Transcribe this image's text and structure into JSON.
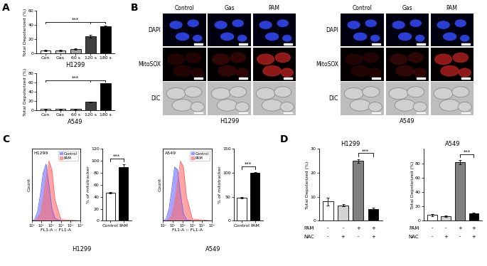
{
  "panel_labels": [
    "A",
    "B",
    "C",
    "D"
  ],
  "chart_data": [
    {
      "type": "bar",
      "panel": "A",
      "caption": "H1299",
      "ylabel": "Total Depolarized (%)",
      "categories": [
        "Con",
        "Gas",
        "60 s",
        "120 s",
        "180 s"
      ],
      "values": [
        4,
        4,
        6,
        24,
        38
      ],
      "errors": [
        0.8,
        0.8,
        1,
        2,
        1.2
      ],
      "colors": [
        "#ffffff",
        "#d0d0d0",
        "#a0a0a0",
        "#404040",
        "#000000"
      ],
      "ylim": [
        0,
        60
      ],
      "yticks": [
        0,
        20,
        40,
        60
      ],
      "significance": [
        {
          "between": [
            "Con",
            "120 s",
            "180 s"
          ],
          "label": "***"
        }
      ]
    },
    {
      "type": "bar",
      "panel": "A",
      "caption": "A549",
      "ylabel": "Total Depolarized (%)",
      "categories": [
        "Con",
        "Gas",
        "60 s",
        "120 s",
        "180 s"
      ],
      "values": [
        3,
        3,
        3,
        18,
        58
      ],
      "errors": [
        0.5,
        0.5,
        0.5,
        0.8,
        0.8
      ],
      "colors": [
        "#ffffff",
        "#d0d0d0",
        "#a0a0a0",
        "#404040",
        "#000000"
      ],
      "ylim": [
        0,
        80
      ],
      "yticks": [
        0,
        20,
        40,
        60,
        80
      ],
      "significance": [
        {
          "between": [
            "Con",
            "120 s",
            "180 s"
          ],
          "label": "***"
        }
      ]
    },
    {
      "type": "line",
      "panel": "C",
      "caption": "H1299",
      "inset_label": "H1299",
      "xlabel": "FL1-A :: FL1-A",
      "ylabel": "Count",
      "log": "x",
      "tick_labels": "x",
      "legend": "upper right",
      "x": [
        1,
        2,
        4,
        8,
        15,
        30,
        60,
        120,
        250,
        1000,
        100000
      ],
      "series": [
        {
          "name": "Control",
          "color": "#6a6aff",
          "values": [
            0,
            2,
            15,
            45,
            80,
            95,
            60,
            20,
            4,
            0,
            0
          ]
        },
        {
          "name": "PAM",
          "color": "#ff6a6a",
          "values": [
            0,
            0,
            3,
            12,
            35,
            70,
            100,
            85,
            35,
            2,
            0
          ]
        }
      ],
      "xlim": [
        1,
        100000
      ],
      "xticks": [
        {
          "value": 1,
          "label": "10⁰"
        },
        {
          "value": 10,
          "label": "10¹"
        },
        {
          "value": 100,
          "label": "10²"
        },
        {
          "value": 1000,
          "label": "10³"
        },
        {
          "value": 10000,
          "label": "10⁴"
        },
        {
          "value": 100000,
          "label": "10⁵"
        }
      ],
      "ylim": [
        0,
        120
      ],
      "yticks": []
    },
    {
      "type": "bar",
      "panel": "C",
      "ylabel": "% of mitotracker",
      "categories": [
        "Control",
        "PAM"
      ],
      "values": [
        47,
        90
      ],
      "errors": [
        1.5,
        4
      ],
      "colors": [
        "#ffffff",
        "#000000"
      ],
      "ylim": [
        0,
        120
      ],
      "yticks": [
        0,
        20,
        40,
        60,
        80,
        100,
        120
      ],
      "significance": [
        {
          "between": [
            "Control",
            "PAM"
          ],
          "label": "***"
        }
      ]
    },
    {
      "type": "line",
      "panel": "C",
      "caption": "A549",
      "inset_label": "A549",
      "xlabel": "FL1-A :: FL1-A",
      "ylabel": "Count",
      "log": "x",
      "tick_labels": "x",
      "legend": "upper right",
      "x": [
        1,
        2,
        4,
        8,
        15,
        30,
        60,
        120,
        250,
        1000,
        100000
      ],
      "series": [
        {
          "name": "Control",
          "color": "#6a6aff",
          "values": [
            0,
            3,
            20,
            55,
            90,
            85,
            45,
            12,
            2,
            0,
            0
          ]
        },
        {
          "name": "PAM",
          "color": "#ff6a6a",
          "values": [
            0,
            0,
            2,
            10,
            30,
            65,
            100,
            90,
            40,
            3,
            0
          ]
        }
      ],
      "xlim": [
        1,
        100000
      ],
      "xticks": [
        {
          "value": 1,
          "label": "10⁰"
        },
        {
          "value": 10,
          "label": "10¹"
        },
        {
          "value": 100,
          "label": "10²"
        },
        {
          "value": 1000,
          "label": "10³"
        },
        {
          "value": 10000,
          "label": "10⁴"
        },
        {
          "value": 100000,
          "label": "10⁵"
        }
      ],
      "ylim": [
        0,
        120
      ],
      "yticks": []
    },
    {
      "type": "bar",
      "panel": "C",
      "ylabel": "% of mitotracker",
      "categories": [
        "Control",
        "PAM"
      ],
      "values": [
        48,
        100
      ],
      "errors": [
        1,
        1.5
      ],
      "colors": [
        "#ffffff",
        "#000000"
      ],
      "ylim": [
        0,
        150
      ],
      "yticks": [
        0,
        50,
        100,
        150
      ],
      "significance": [
        {
          "between": [
            "Control",
            "PAM"
          ],
          "label": "***"
        }
      ]
    },
    {
      "type": "bar",
      "panel": "D",
      "title": "H1299",
      "ylabel": "Total Depolarized (%)",
      "tick_labels": "y",
      "rows": [
        {
          "label": "PAM",
          "values": [
            "-",
            "-",
            "+",
            "+"
          ]
        },
        {
          "label": "NAC",
          "values": [
            "-",
            "+",
            "-",
            "+"
          ]
        }
      ],
      "values": [
        8,
        6.5,
        25,
        5
      ],
      "errors": [
        1.5,
        0.5,
        0.8,
        0.5
      ],
      "colors": [
        "#ffffff",
        "#d3d3d3",
        "#808080",
        "#000000"
      ],
      "ylim": [
        0,
        30
      ],
      "yticks": [
        0,
        10,
        20,
        30
      ],
      "significance": [
        {
          "between": [
            2,
            3
          ],
          "label": "***"
        }
      ]
    },
    {
      "type": "bar",
      "panel": "D",
      "title": "A549",
      "ylabel": "Total Depolarized (%)",
      "tick_labels": "y",
      "rows": [
        {
          "label": "PAM",
          "values": [
            "-",
            "-",
            "+",
            "+"
          ]
        },
        {
          "label": "NAC",
          "values": [
            "-",
            "+",
            "-",
            "+"
          ]
        }
      ],
      "values": [
        8,
        6,
        82,
        10
      ],
      "errors": [
        1.5,
        1,
        3,
        1
      ],
      "colors": [
        "#ffffff",
        "#d3d3d3",
        "#808080",
        "#000000"
      ],
      "ylim": [
        0,
        100
      ],
      "yticks": [
        0,
        20,
        40,
        60,
        80
      ],
      "significance": [
        {
          "between": [
            2,
            3
          ],
          "label": "***"
        }
      ]
    }
  ],
  "micrographs": [
    {
      "panel": "B",
      "cell_line": "H1299",
      "columns": [
        "Control",
        "Gas",
        "PAM"
      ],
      "rows": [
        "DAPI",
        "MitoSOX",
        "DIC"
      ]
    },
    {
      "panel": "B",
      "cell_line": "A549",
      "columns": [
        "Control",
        "Gas",
        "PAM"
      ],
      "rows": [
        "DAPI",
        "MitoSOX",
        "DIC"
      ]
    }
  ]
}
